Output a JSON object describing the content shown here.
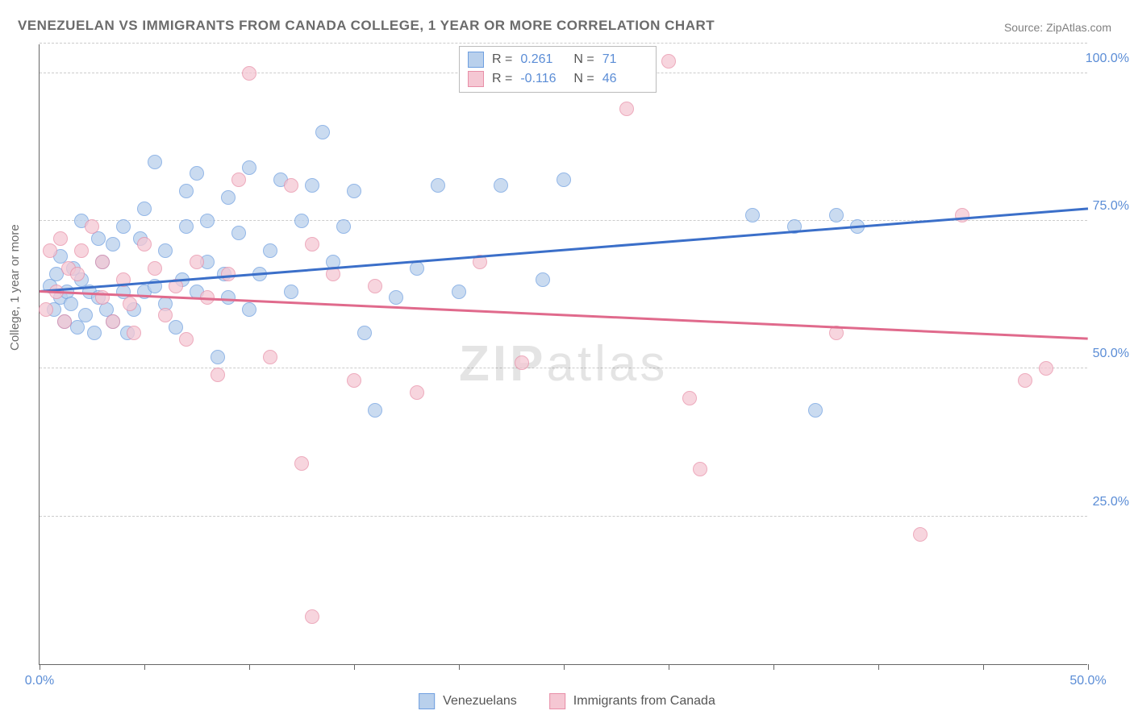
{
  "title": "VENEZUELAN VS IMMIGRANTS FROM CANADA COLLEGE, 1 YEAR OR MORE CORRELATION CHART",
  "source": "Source: ZipAtlas.com",
  "ylabel": "College, 1 year or more",
  "watermark_bold": "ZIP",
  "watermark_light": "atlas",
  "legend_box": {
    "rows": [
      {
        "swatch_fill": "#b9d0ec",
        "swatch_stroke": "#6f9fe0",
        "r": "0.261",
        "n": "71"
      },
      {
        "swatch_fill": "#f5c7d3",
        "swatch_stroke": "#e88fa8",
        "r": "-0.116",
        "n": "46"
      }
    ],
    "labels": {
      "r": "R  =",
      "n": "N  ="
    }
  },
  "bottom_legend": [
    {
      "swatch_fill": "#b9d0ec",
      "swatch_stroke": "#6f9fe0",
      "label": "Venezuelans"
    },
    {
      "swatch_fill": "#f5c7d3",
      "swatch_stroke": "#e88fa8",
      "label": "Immigrants from Canada"
    }
  ],
  "chart": {
    "type": "scatter",
    "xlim": [
      0,
      50
    ],
    "ylim": [
      0,
      105
    ],
    "x_ticks": [
      0,
      5,
      10,
      15,
      20,
      25,
      30,
      35,
      40,
      45,
      50
    ],
    "x_tick_labels": {
      "0": "0.0%",
      "50": "50.0%"
    },
    "y_gridlines": [
      25,
      50,
      75,
      100,
      105
    ],
    "y_tick_labels": {
      "25": "25.0%",
      "50": "50.0%",
      "75": "75.0%",
      "100": "100.0%"
    },
    "series": [
      {
        "name": "Venezuelans",
        "fill": "#b9d0ec",
        "stroke": "#6f9fe0",
        "trend": {
          "y0": 63,
          "y1": 77,
          "color": "#3b6fc9"
        },
        "points": [
          [
            0.5,
            64
          ],
          [
            0.7,
            60
          ],
          [
            0.8,
            66
          ],
          [
            1.0,
            62
          ],
          [
            1.0,
            69
          ],
          [
            1.2,
            58
          ],
          [
            1.3,
            63
          ],
          [
            1.5,
            61
          ],
          [
            1.6,
            67
          ],
          [
            1.8,
            57
          ],
          [
            2.0,
            65
          ],
          [
            2.0,
            75
          ],
          [
            2.2,
            59
          ],
          [
            2.4,
            63
          ],
          [
            2.6,
            56
          ],
          [
            2.8,
            62
          ],
          [
            2.8,
            72
          ],
          [
            3.0,
            68
          ],
          [
            3.2,
            60
          ],
          [
            3.5,
            58
          ],
          [
            3.5,
            71
          ],
          [
            4.0,
            63
          ],
          [
            4.0,
            74
          ],
          [
            4.2,
            56
          ],
          [
            4.5,
            60
          ],
          [
            4.8,
            72
          ],
          [
            5.0,
            77
          ],
          [
            5.0,
            63
          ],
          [
            5.5,
            64
          ],
          [
            5.5,
            85
          ],
          [
            6.0,
            61
          ],
          [
            6.0,
            70
          ],
          [
            6.5,
            57
          ],
          [
            6.8,
            65
          ],
          [
            7.0,
            80
          ],
          [
            7.0,
            74
          ],
          [
            7.5,
            63
          ],
          [
            7.5,
            83
          ],
          [
            8.0,
            68
          ],
          [
            8.0,
            75
          ],
          [
            8.5,
            52
          ],
          [
            8.8,
            66
          ],
          [
            9.0,
            62
          ],
          [
            9.0,
            79
          ],
          [
            9.5,
            73
          ],
          [
            10.0,
            84
          ],
          [
            10.0,
            60
          ],
          [
            10.5,
            66
          ],
          [
            11.0,
            70
          ],
          [
            11.5,
            82
          ],
          [
            12.0,
            63
          ],
          [
            12.5,
            75
          ],
          [
            13.0,
            81
          ],
          [
            13.5,
            90
          ],
          [
            14.0,
            68
          ],
          [
            14.5,
            74
          ],
          [
            15.0,
            80
          ],
          [
            15.5,
            56
          ],
          [
            16.0,
            43
          ],
          [
            17.0,
            62
          ],
          [
            18.0,
            67
          ],
          [
            19.0,
            81
          ],
          [
            20.0,
            63
          ],
          [
            22.0,
            81
          ],
          [
            24.0,
            65
          ],
          [
            25.0,
            82
          ],
          [
            34.0,
            76
          ],
          [
            36.0,
            74
          ],
          [
            37.0,
            43
          ],
          [
            38.0,
            76
          ],
          [
            39.0,
            74
          ]
        ]
      },
      {
        "name": "Immigrants from Canada",
        "fill": "#f5c7d3",
        "stroke": "#e88fa8",
        "trend": {
          "y0": 63,
          "y1": 55,
          "color": "#e06a8c"
        },
        "points": [
          [
            0.3,
            60
          ],
          [
            0.5,
            70
          ],
          [
            0.8,
            63
          ],
          [
            1.0,
            72
          ],
          [
            1.2,
            58
          ],
          [
            1.4,
            67
          ],
          [
            1.8,
            66
          ],
          [
            2.0,
            70
          ],
          [
            2.5,
            74
          ],
          [
            3.0,
            68
          ],
          [
            3.0,
            62
          ],
          [
            3.5,
            58
          ],
          [
            4.0,
            65
          ],
          [
            4.3,
            61
          ],
          [
            4.5,
            56
          ],
          [
            5.0,
            71
          ],
          [
            5.5,
            67
          ],
          [
            6.0,
            59
          ],
          [
            6.5,
            64
          ],
          [
            7.0,
            55
          ],
          [
            7.5,
            68
          ],
          [
            8.0,
            62
          ],
          [
            8.5,
            49
          ],
          [
            9.0,
            66
          ],
          [
            9.5,
            82
          ],
          [
            10.0,
            100
          ],
          [
            11.0,
            52
          ],
          [
            12.0,
            81
          ],
          [
            12.5,
            34
          ],
          [
            13.0,
            71
          ],
          [
            14.0,
            66
          ],
          [
            15.0,
            48
          ],
          [
            16.0,
            64
          ],
          [
            13.0,
            8
          ],
          [
            18.0,
            46
          ],
          [
            21.0,
            68
          ],
          [
            23.0,
            51
          ],
          [
            28.0,
            94
          ],
          [
            30.0,
            102
          ],
          [
            31.0,
            45
          ],
          [
            31.5,
            33
          ],
          [
            38.0,
            56
          ],
          [
            42.0,
            22
          ],
          [
            47.0,
            48
          ],
          [
            48.0,
            50
          ],
          [
            44.0,
            76
          ]
        ]
      }
    ]
  }
}
